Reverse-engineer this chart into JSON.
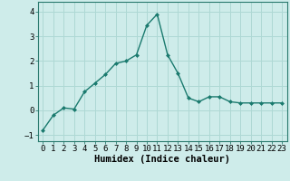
{
  "x": [
    0,
    1,
    2,
    3,
    4,
    5,
    6,
    7,
    8,
    9,
    10,
    11,
    12,
    13,
    14,
    15,
    16,
    17,
    18,
    19,
    20,
    21,
    22,
    23
  ],
  "y": [
    -0.8,
    -0.2,
    0.1,
    0.05,
    0.75,
    1.1,
    1.45,
    1.9,
    2.0,
    2.25,
    3.45,
    3.9,
    2.25,
    1.5,
    0.5,
    0.35,
    0.55,
    0.55,
    0.35,
    0.3,
    0.3,
    0.3,
    0.3,
    0.3
  ],
  "line_color": "#1a7a6e",
  "marker": "D",
  "marker_size": 2.0,
  "xlabel": "Humidex (Indice chaleur)",
  "ylim": [
    -1.25,
    4.4
  ],
  "xlim": [
    -0.5,
    23.5
  ],
  "yticks": [
    -1,
    0,
    1,
    2,
    3,
    4
  ],
  "xticks": [
    0,
    1,
    2,
    3,
    4,
    5,
    6,
    7,
    8,
    9,
    10,
    11,
    12,
    13,
    14,
    15,
    16,
    17,
    18,
    19,
    20,
    21,
    22,
    23
  ],
  "xtick_labels": [
    "0",
    "1",
    "2",
    "3",
    "4",
    "5",
    "6",
    "7",
    "8",
    "9",
    "10",
    "11",
    "12",
    "13",
    "14",
    "15",
    "16",
    "17",
    "18",
    "19",
    "20",
    "21",
    "22",
    "23"
  ],
  "bg_color": "#ceecea",
  "grid_color": "#aed8d4",
  "tick_fontsize": 6.5,
  "xlabel_fontsize": 7.5,
  "line_width": 1.0
}
